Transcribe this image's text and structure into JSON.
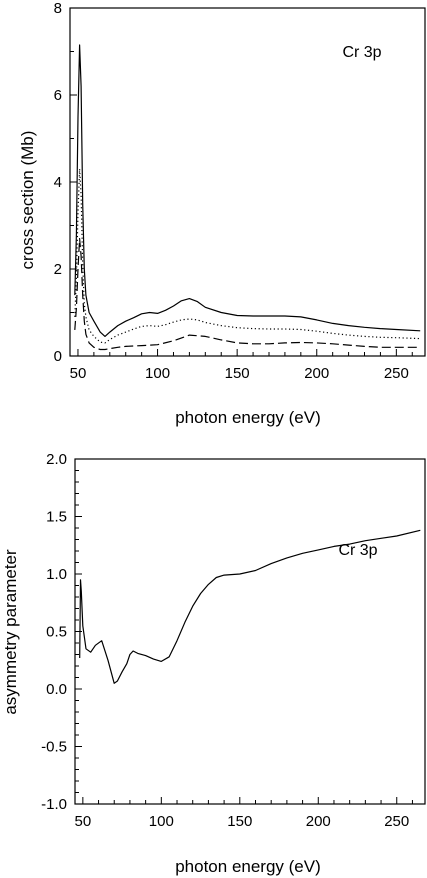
{
  "chart_data": [
    {
      "type": "line",
      "annotation": "Cr 3p",
      "xlabel": "photon energy (eV)",
      "ylabel": "cross section (Mb)",
      "xlim": [
        45,
        268
      ],
      "ylim": [
        0,
        8
      ],
      "xticks": [
        50,
        100,
        150,
        200,
        250
      ],
      "yticks": [
        0,
        2,
        4,
        6,
        8
      ],
      "grid": false,
      "series": [
        {
          "style": "solid",
          "x": [
            48,
            49,
            50,
            51,
            52,
            53,
            54,
            55,
            57,
            60,
            64,
            67,
            70,
            75,
            80,
            85,
            90,
            95,
            100,
            105,
            110,
            115,
            120,
            125,
            130,
            140,
            150,
            160,
            170,
            180,
            190,
            200,
            210,
            220,
            230,
            240,
            250,
            265
          ],
          "y": [
            1.4,
            2.8,
            5.5,
            7.15,
            6.2,
            3.5,
            2.0,
            1.4,
            1.0,
            0.8,
            0.55,
            0.45,
            0.55,
            0.7,
            0.8,
            0.88,
            0.97,
            1.0,
            0.98,
            1.05,
            1.15,
            1.27,
            1.32,
            1.25,
            1.12,
            1.0,
            0.93,
            0.92,
            0.92,
            0.92,
            0.9,
            0.83,
            0.75,
            0.7,
            0.66,
            0.63,
            0.61,
            0.58
          ]
        },
        {
          "style": "dotted",
          "x": [
            48,
            49,
            50,
            51,
            52,
            53,
            54,
            55,
            57,
            60,
            64,
            67,
            70,
            75,
            80,
            85,
            90,
            95,
            100,
            105,
            110,
            115,
            120,
            125,
            130,
            140,
            150,
            160,
            170,
            180,
            190,
            200,
            210,
            220,
            230,
            240,
            250,
            265
          ],
          "y": [
            0.9,
            1.8,
            3.3,
            4.3,
            3.7,
            2.1,
            1.2,
            0.9,
            0.6,
            0.45,
            0.32,
            0.3,
            0.38,
            0.48,
            0.55,
            0.62,
            0.68,
            0.7,
            0.68,
            0.72,
            0.78,
            0.83,
            0.85,
            0.83,
            0.77,
            0.7,
            0.65,
            0.63,
            0.62,
            0.62,
            0.61,
            0.57,
            0.52,
            0.48,
            0.45,
            0.43,
            0.42,
            0.4
          ]
        },
        {
          "style": "dashed",
          "x": [
            48,
            49,
            50,
            51,
            52,
            53,
            54,
            55,
            57,
            60,
            64,
            67,
            70,
            75,
            80,
            90,
            100,
            110,
            120,
            130,
            140,
            150,
            160,
            170,
            180,
            190,
            200,
            210,
            220,
            230,
            240,
            250,
            265
          ],
          "y": [
            0.6,
            1.1,
            2.0,
            2.7,
            2.3,
            1.4,
            0.8,
            0.5,
            0.3,
            0.2,
            0.15,
            0.15,
            0.17,
            0.2,
            0.22,
            0.24,
            0.26,
            0.35,
            0.48,
            0.45,
            0.37,
            0.3,
            0.28,
            0.28,
            0.3,
            0.31,
            0.3,
            0.28,
            0.25,
            0.22,
            0.2,
            0.2,
            0.2
          ]
        }
      ]
    },
    {
      "type": "line",
      "annotation": "Cr 3p",
      "xlabel": "photon energy (eV)",
      "ylabel": "asymmetry parameter",
      "xlim": [
        45,
        268
      ],
      "ylim": [
        -1.0,
        2.0
      ],
      "xticks": [
        50,
        100,
        150,
        200,
        250
      ],
      "yticks": [
        -1.0,
        -0.5,
        0.0,
        0.5,
        1.0,
        1.5,
        2.0
      ],
      "grid": false,
      "series": [
        {
          "style": "solid",
          "x": [
            48,
            48.5,
            49,
            50,
            51,
            52,
            55,
            58,
            62,
            66,
            70,
            72,
            75,
            78,
            80,
            82,
            85,
            90,
            95,
            100,
            105,
            110,
            115,
            120,
            125,
            130,
            135,
            140,
            150,
            160,
            170,
            180,
            190,
            200,
            210,
            220,
            230,
            240,
            250,
            265
          ],
          "y": [
            0.27,
            0.95,
            0.85,
            0.55,
            0.45,
            0.35,
            0.32,
            0.38,
            0.42,
            0.25,
            0.05,
            0.07,
            0.15,
            0.22,
            0.3,
            0.33,
            0.31,
            0.29,
            0.26,
            0.24,
            0.28,
            0.42,
            0.58,
            0.72,
            0.83,
            0.91,
            0.97,
            0.99,
            1.0,
            1.03,
            1.09,
            1.14,
            1.18,
            1.21,
            1.24,
            1.26,
            1.29,
            1.31,
            1.33,
            1.38
          ]
        }
      ]
    }
  ]
}
